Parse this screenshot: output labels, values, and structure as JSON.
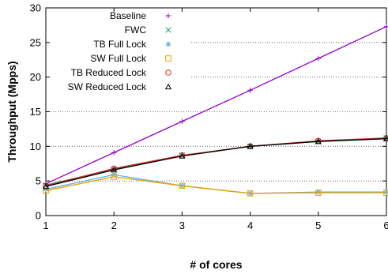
{
  "chart_data": {
    "type": "line",
    "xlabel": "# of cores",
    "ylabel": "Throughput (Mpps)",
    "xlim": [
      1,
      6
    ],
    "ylim": [
      0,
      30
    ],
    "x_ticks": [
      "1",
      "2",
      "3",
      "4",
      "5",
      "6"
    ],
    "y_ticks": [
      "0",
      "5",
      "10",
      "15",
      "20",
      "25",
      "30"
    ],
    "grid": "horizontal dotted",
    "legend_position": "top-left",
    "x": [
      1,
      2,
      3,
      4,
      5,
      6
    ],
    "series": [
      {
        "name": "Baseline",
        "marker": "plus",
        "color": "#9400d3",
        "values": [
          4.6,
          9.1,
          13.6,
          18.1,
          22.7,
          27.3
        ]
      },
      {
        "name": "FWC",
        "marker": "cross",
        "color": "#009e73",
        "values": [
          4.4,
          6.7,
          8.7,
          10.0,
          10.7,
          11.2
        ]
      },
      {
        "name": "TB Full Lock",
        "marker": "asterisk",
        "color": "#56b4e9",
        "values": [
          3.8,
          5.9,
          4.3,
          3.2,
          3.4,
          3.4
        ]
      },
      {
        "name": "SW Full Lock",
        "marker": "square",
        "color": "#e6a000",
        "values": [
          3.6,
          5.6,
          4.3,
          3.2,
          3.3,
          3.3
        ]
      },
      {
        "name": "TB Reduced Lock",
        "marker": "circle",
        "color": "#d62728",
        "values": [
          4.3,
          6.8,
          8.7,
          10.0,
          10.8,
          11.2
        ]
      },
      {
        "name": "SW Reduced Lock",
        "marker": "triangle",
        "color": "#000000",
        "values": [
          4.2,
          6.6,
          8.6,
          10.0,
          10.7,
          11.1
        ]
      }
    ]
  }
}
